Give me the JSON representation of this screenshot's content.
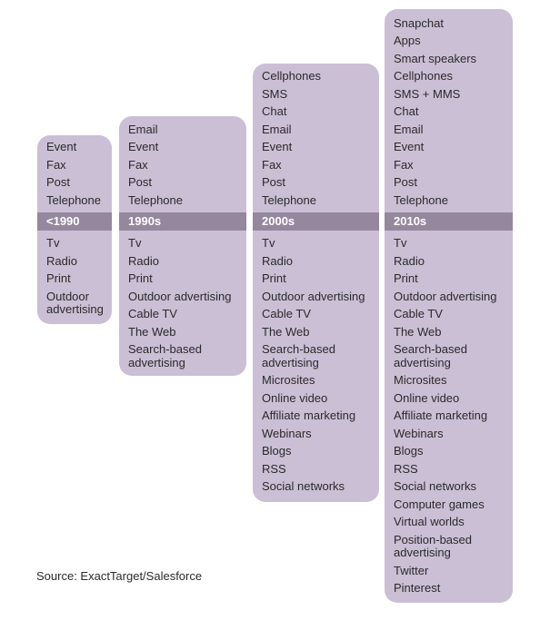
{
  "columns": [
    {
      "era": "<1990",
      "above": [
        "Event",
        "Fax",
        "Post",
        "Telephone"
      ],
      "below": [
        "Tv",
        "Radio",
        "Print",
        "Outdoor advertising"
      ]
    },
    {
      "era": "1990s",
      "above": [
        "Email",
        "Event",
        "Fax",
        "Post",
        "Telephone"
      ],
      "below": [
        "Tv",
        "Radio",
        "Print",
        "Outdoor advertising",
        "Cable TV",
        "The Web",
        "Search-based advertising"
      ]
    },
    {
      "era": "2000s",
      "above": [
        "Cellphones",
        "SMS",
        "Chat",
        "Email",
        "Event",
        "Fax",
        "Post",
        "Telephone"
      ],
      "below": [
        "Tv",
        "Radio",
        "Print",
        "Outdoor advertising",
        "Cable TV",
        "The Web",
        "Search-based advertising",
        "Microsites",
        "Online video",
        "Affiliate marketing",
        "Webinars",
        "Blogs",
        "RSS",
        "Social networks"
      ]
    },
    {
      "era": "2010s",
      "above": [
        "Snapchat",
        "Apps",
        "Smart speakers",
        "Cellphones",
        "SMS + MMS",
        "Chat",
        "Email",
        "Event",
        "Fax",
        "Post",
        "Telephone"
      ],
      "below": [
        "Tv",
        "Radio",
        "Print",
        "Outdoor advertising",
        "Cable TV",
        "The Web",
        "Search-based advertising",
        "Microsites",
        "Online video",
        "Affiliate marketing",
        "Webinars",
        "Blogs",
        "RSS",
        "Social networks",
        "Computer games",
        "Virtual worlds",
        "Position-based advertising",
        "Twitter",
        "Pinterest"
      ]
    }
  ],
  "source": "Source: ExactTarget/Salesforce",
  "colors": {
    "panel": "#cbbfd6",
    "band": "#94879e",
    "band_text": "#ffffff"
  }
}
